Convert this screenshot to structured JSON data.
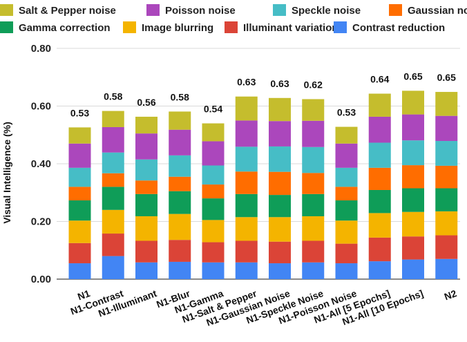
{
  "chart_data": {
    "type": "bar",
    "stacked": true,
    "title": "",
    "xlabel": "",
    "ylabel": "Visual Intelligence (%)",
    "ylim": [
      0,
      0.8
    ],
    "yticks": [
      "0.00",
      "0.20",
      "0.40",
      "0.60",
      "0.80"
    ],
    "grid": true,
    "legend_position": "top",
    "categories": [
      "N1",
      "N1-Contrast",
      "N1-Illuminant",
      "N1-Blur",
      "N1-Gamma",
      "N1-Salt & Pepper",
      "N1-Gaussian Noise",
      "N1-Speckle Noise",
      "N1-Poisson Noise",
      "N1-All [5 Epochs]",
      "N1-All [10 Epochs]",
      "N2"
    ],
    "totals": [
      "0.53",
      "0.58",
      "0.56",
      "0.58",
      "0.54",
      "0.63",
      "0.63",
      "0.62",
      "0.53",
      "0.64",
      "0.65",
      "0.65"
    ],
    "series": [
      {
        "name": "Contrast reduction",
        "color": "#4285F4",
        "values": [
          0.055,
          0.08,
          0.058,
          0.06,
          0.058,
          0.058,
          0.055,
          0.058,
          0.055,
          0.062,
          0.068,
          0.07
        ]
      },
      {
        "name": "Illuminant variation",
        "color": "#DB4437",
        "values": [
          0.07,
          0.078,
          0.075,
          0.076,
          0.07,
          0.075,
          0.075,
          0.075,
          0.068,
          0.082,
          0.08,
          0.082
        ]
      },
      {
        "name": "Image blurring",
        "color": "#F4B400",
        "values": [
          0.078,
          0.082,
          0.085,
          0.09,
          0.077,
          0.082,
          0.085,
          0.085,
          0.08,
          0.085,
          0.085,
          0.083
        ]
      },
      {
        "name": "Gamma correction",
        "color": "#0F9D58",
        "values": [
          0.07,
          0.08,
          0.077,
          0.079,
          0.075,
          0.08,
          0.077,
          0.077,
          0.07,
          0.08,
          0.082,
          0.08
        ]
      },
      {
        "name": "Gaussian noise",
        "color": "#FF6D00",
        "values": [
          0.047,
          0.047,
          0.047,
          0.05,
          0.048,
          0.078,
          0.08,
          0.073,
          0.047,
          0.077,
          0.08,
          0.078
        ]
      },
      {
        "name": "Speckle noise",
        "color": "#46BDC6",
        "values": [
          0.066,
          0.072,
          0.073,
          0.074,
          0.066,
          0.086,
          0.088,
          0.09,
          0.066,
          0.087,
          0.086,
          0.086
        ]
      },
      {
        "name": "Poisson noise",
        "color": "#AB47BC",
        "values": [
          0.084,
          0.088,
          0.09,
          0.089,
          0.084,
          0.091,
          0.088,
          0.091,
          0.084,
          0.09,
          0.09,
          0.087
        ]
      },
      {
        "name": "Salt & Pepper noise",
        "color": "#C5BD2D",
        "values": [
          0.056,
          0.056,
          0.058,
          0.063,
          0.062,
          0.083,
          0.08,
          0.075,
          0.058,
          0.08,
          0.082,
          0.083
        ]
      }
    ],
    "legend_rows": [
      [
        "Salt & Pepper noise",
        "Poisson noise",
        "Speckle noise",
        "Gaussian noise"
      ],
      [
        "Gamma correction",
        "Image blurring",
        "Illuminant variation",
        "Contrast reduction"
      ]
    ]
  }
}
